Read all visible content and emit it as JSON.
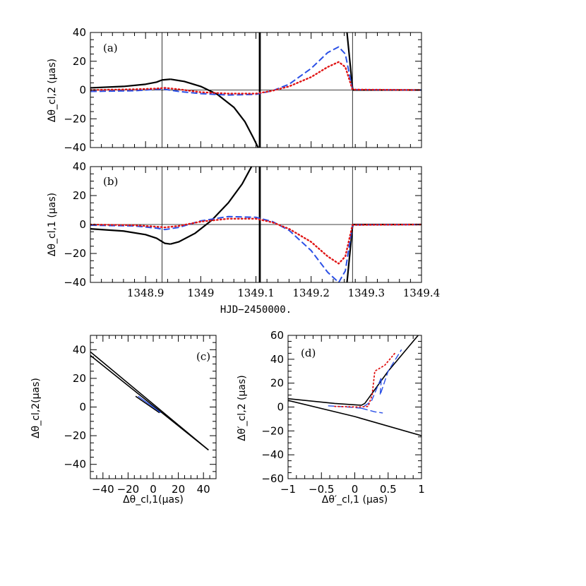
{
  "figure": {
    "caption": ""
  },
  "colors": {
    "black": "#000000",
    "blue": "#2b50e6",
    "red": "#e01515"
  },
  "chart_data": [
    {
      "id": "a",
      "type": "line",
      "panel_label": "(a)",
      "ylabel": "Δθ_cl,2 (μas)",
      "xlabel": "",
      "xlim": [
        1348.8,
        1349.4
      ],
      "ylim": [
        -40,
        40
      ],
      "yticks": [
        -40,
        -20,
        0,
        20,
        40
      ],
      "ytick_labels": [
        "−40",
        "−20",
        "0",
        "20",
        "40"
      ],
      "xtick_labels_shown": false,
      "vlines": [
        1348.93,
        1349.107,
        1349.275
      ],
      "hlines": [
        0
      ],
      "series": [
        {
          "name": "solid",
          "style": "solid",
          "color": "black",
          "width": 2.2,
          "x": [
            1348.8,
            1348.86,
            1348.9,
            1348.92,
            1348.93,
            1348.945
          ],
          "y": [
            1.5,
            2.5,
            4,
            5.5,
            7,
            7.5
          ]
        },
        {
          "name": "solid-branch",
          "style": "solid",
          "color": "black",
          "width": 2.2,
          "x": [
            1348.945,
            1348.97,
            1349.0,
            1349.03,
            1349.06,
            1349.08,
            1349.095,
            1349.104
          ],
          "y": [
            7.5,
            6,
            2.5,
            -3,
            -12,
            -22,
            -33,
            -40
          ]
        },
        {
          "name": "solid-vertical",
          "style": "solid",
          "color": "black",
          "width": 2.8,
          "x": [
            1349.107,
            1349.107
          ],
          "y": [
            -40,
            40
          ]
        },
        {
          "name": "solid-right",
          "style": "solid",
          "color": "black",
          "width": 2.2,
          "x": [
            1349.265,
            1349.275,
            1349.276,
            1349.4
          ],
          "y": [
            40,
            1.5,
            0,
            0
          ]
        },
        {
          "name": "dashed",
          "style": "dashed",
          "color": "blue",
          "width": 2,
          "x": [
            1348.8,
            1348.88,
            1348.92,
            1348.935,
            1348.96,
            1349.0,
            1349.05,
            1349.1,
            1349.13,
            1349.16,
            1349.2,
            1349.23,
            1349.25,
            1349.262,
            1349.275,
            1349.4
          ],
          "y": [
            -1,
            -0.5,
            0.5,
            0.5,
            -1,
            -2.5,
            -3.5,
            -3,
            -0.5,
            4,
            15,
            26,
            30,
            25,
            0.3,
            0
          ]
        },
        {
          "name": "dotted",
          "style": "dotted",
          "color": "red",
          "width": 2.4,
          "x": [
            1348.8,
            1348.88,
            1348.92,
            1348.935,
            1348.96,
            1349.0,
            1349.05,
            1349.1,
            1349.13,
            1349.16,
            1349.2,
            1349.23,
            1349.25,
            1349.262,
            1349.275,
            1349.4
          ],
          "y": [
            0,
            0.5,
            1,
            1.5,
            0.5,
            -1.5,
            -2.5,
            -2.5,
            -0.5,
            2.5,
            9,
            16,
            19.5,
            16,
            0.3,
            0
          ]
        }
      ]
    },
    {
      "id": "b",
      "type": "line",
      "panel_label": "(b)",
      "ylabel": "Δθ_cl,1 (μas)",
      "xlabel": "HJD−2450000.",
      "xlim": [
        1348.8,
        1349.4
      ],
      "ylim": [
        -40,
        40
      ],
      "yticks": [
        -40,
        -20,
        0,
        20,
        40
      ],
      "ytick_labels": [
        "−40",
        "−20",
        "0",
        "20",
        "40"
      ],
      "xticks": [
        1348.9,
        1349.0,
        1349.1,
        1349.2,
        1349.3,
        1349.4
      ],
      "xtick_labels": [
        "1348.9",
        "1349",
        "1349.1",
        "1349.2",
        "1349.3",
        "1349.4"
      ],
      "vlines": [
        1348.93,
        1349.107,
        1349.275
      ],
      "hlines": [
        0
      ],
      "series": [
        {
          "name": "solid",
          "style": "solid",
          "color": "black",
          "width": 2.2,
          "x": [
            1348.8,
            1348.86,
            1348.9,
            1348.92,
            1348.935,
            1348.945
          ],
          "y": [
            -3,
            -4.5,
            -7,
            -9.5,
            -13,
            -13.5
          ]
        },
        {
          "name": "solid-branch",
          "style": "solid",
          "color": "black",
          "width": 2.2,
          "x": [
            1348.945,
            1348.96,
            1348.99,
            1349.02,
            1349.05,
            1349.075,
            1349.092
          ],
          "y": [
            -13.5,
            -12,
            -6,
            3,
            15,
            28,
            40
          ]
        },
        {
          "name": "solid-vertical",
          "style": "solid",
          "color": "black",
          "width": 2.8,
          "x": [
            1349.107,
            1349.107
          ],
          "y": [
            -40,
            40
          ]
        },
        {
          "name": "solid-right",
          "style": "solid",
          "color": "black",
          "width": 2.2,
          "x": [
            1349.265,
            1349.275,
            1349.276,
            1349.4
          ],
          "y": [
            -40,
            -1.5,
            0,
            0
          ]
        },
        {
          "name": "dashed",
          "style": "dashed",
          "color": "blue",
          "width": 2,
          "x": [
            1348.8,
            1348.88,
            1348.92,
            1348.935,
            1348.96,
            1349.0,
            1349.05,
            1349.1,
            1349.13,
            1349.16,
            1349.2,
            1349.23,
            1349.25,
            1349.262,
            1349.275,
            1349.4
          ],
          "y": [
            -0.5,
            -1,
            -2.5,
            -3.5,
            -2,
            2.5,
            5.5,
            5,
            2,
            -4,
            -18,
            -33,
            -40,
            -32,
            -0.3,
            0
          ]
        },
        {
          "name": "dotted",
          "style": "dotted",
          "color": "red",
          "width": 2.4,
          "x": [
            1348.8,
            1348.88,
            1348.92,
            1348.935,
            1348.96,
            1349.0,
            1349.05,
            1349.1,
            1349.13,
            1349.16,
            1349.2,
            1349.23,
            1349.25,
            1349.262,
            1349.275,
            1349.4
          ],
          "y": [
            0,
            -0.5,
            -1.5,
            -2,
            -1,
            2,
            4,
            4,
            1.5,
            -3,
            -12,
            -22,
            -27,
            -22,
            -0.3,
            0
          ]
        }
      ]
    },
    {
      "id": "c",
      "type": "line",
      "panel_label": "(c)",
      "xlabel": "Δθ_cl,1(μas)",
      "ylabel": "Δθ_cl,2(μas)",
      "xlim": [
        -50,
        50
      ],
      "ylim": [
        -50,
        50
      ],
      "xticks": [
        -40,
        -20,
        0,
        20,
        40
      ],
      "xtick_labels": [
        "−40",
        "−20",
        "0",
        "20",
        "40"
      ],
      "yticks": [
        -40,
        -20,
        0,
        20,
        40
      ],
      "ytick_labels": [
        "−40",
        "−20",
        "0",
        "20",
        "40"
      ],
      "series": [
        {
          "name": "solid-upper",
          "style": "solid",
          "color": "black",
          "width": 1.6,
          "x": [
            -50,
            44
          ],
          "y": [
            38.5,
            -30
          ]
        },
        {
          "name": "solid-lower",
          "style": "solid",
          "color": "black",
          "width": 1.6,
          "x": [
            -50,
            44
          ],
          "y": [
            36,
            -30
          ]
        },
        {
          "name": "solid-short",
          "style": "solid",
          "color": "black",
          "width": 1.6,
          "x": [
            -14,
            5
          ],
          "y": [
            7.5,
            -4
          ]
        },
        {
          "name": "blue",
          "style": "solid",
          "color": "blue",
          "width": 1.4,
          "x": [
            -12,
            0,
            6
          ],
          "y": [
            7.5,
            0,
            -4
          ]
        }
      ]
    },
    {
      "id": "d",
      "type": "line",
      "panel_label": "(d)",
      "xlabel": "Δθ′_cl,1 (μas)",
      "ylabel": "Δθ′_cl,2 (μas)",
      "xlim": [
        -1,
        1
      ],
      "ylim": [
        -60,
        60
      ],
      "xticks": [
        -1,
        -0.5,
        0,
        0.5,
        1
      ],
      "xtick_labels": [
        "−1",
        "−0.5",
        "0",
        "0.5",
        "1"
      ],
      "yticks": [
        -60,
        -40,
        -20,
        0,
        20,
        40,
        60
      ],
      "ytick_labels": [
        "−60",
        "−40",
        "−20",
        "0",
        "20",
        "40",
        "60"
      ],
      "series": [
        {
          "name": "solid-top",
          "style": "solid",
          "color": "black",
          "width": 1.6,
          "x": [
            -1,
            -0.3,
            0.1,
            0.15,
            0.5,
            0.95
          ],
          "y": [
            7,
            3,
            1.5,
            3,
            30,
            60
          ]
        },
        {
          "name": "solid-bottom",
          "style": "solid",
          "color": "black",
          "width": 1.6,
          "x": [
            -1,
            0,
            1
          ],
          "y": [
            5.5,
            -8,
            -24
          ]
        },
        {
          "name": "blue-dashed",
          "style": "dashed",
          "color": "blue",
          "width": 1.4,
          "x": [
            -0.4,
            -0.1,
            0.1,
            0.25,
            0.4,
            0.38,
            0.5,
            0.7
          ],
          "y": [
            1,
            0,
            -1,
            5,
            25,
            10,
            30,
            48
          ]
        },
        {
          "name": "blue-hook",
          "style": "dashed",
          "color": "blue",
          "width": 1.4,
          "x": [
            0.1,
            0.3,
            0.42
          ],
          "y": [
            -1,
            -4,
            -5
          ]
        },
        {
          "name": "red-dotted",
          "style": "dotted",
          "color": "red",
          "width": 1.8,
          "x": [
            -0.3,
            0.05,
            0.2,
            0.26,
            0.3,
            0.45,
            0.6
          ],
          "y": [
            0.5,
            0,
            0.5,
            10,
            30,
            35,
            45
          ]
        }
      ]
    }
  ]
}
